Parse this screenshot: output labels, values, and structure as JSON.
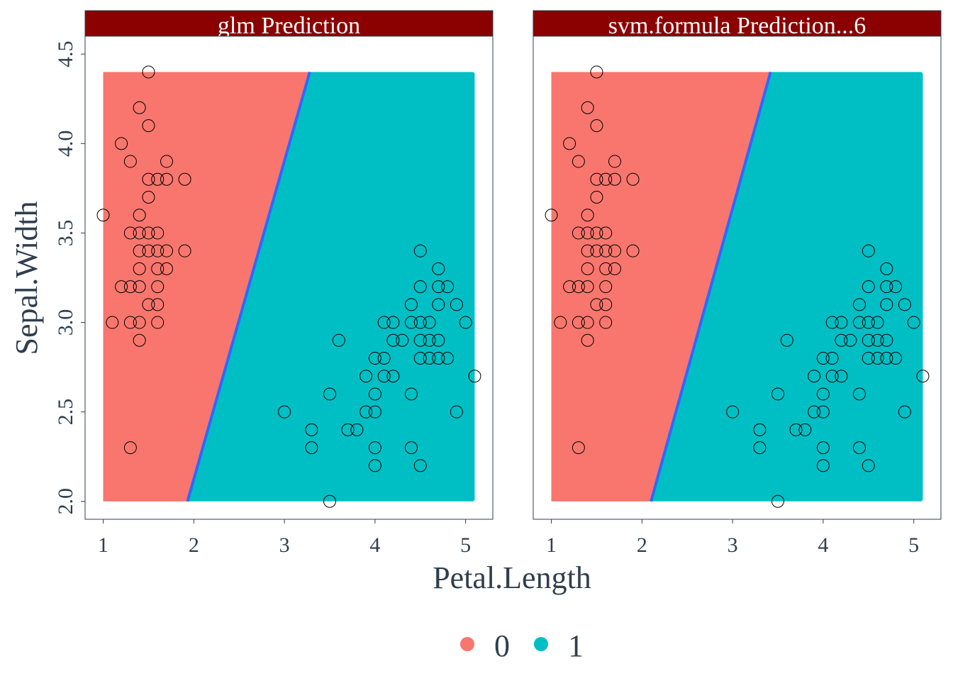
{
  "colors": {
    "class_0": "#F8766D",
    "class_1": "#00BFC4",
    "boundary": "#3366FF",
    "strip_bg": "#8B0000",
    "strip_text": "#FFFFFF",
    "panel_border": "#2F3E4F",
    "point_stroke": "#000000",
    "text": "#2F3E4F"
  },
  "chart_data": {
    "type": "scatter",
    "xlabel": "Petal.Length",
    "ylabel": "Sepal.Width",
    "xlim": [
      0.8,
      5.3
    ],
    "ylim": [
      1.9,
      4.6
    ],
    "x_ticks": [
      1,
      2,
      3,
      4,
      5
    ],
    "y_ticks": [
      2.0,
      2.5,
      3.0,
      3.5,
      4.0,
      4.5
    ],
    "x_tick_labels": [
      "1",
      "2",
      "3",
      "4",
      "5"
    ],
    "y_tick_labels": [
      "2.0",
      "2.5",
      "3.0",
      "3.5",
      "4.0",
      "4.5"
    ],
    "grid": false,
    "legend": {
      "placement": "bottom",
      "entries": [
        "0",
        "1"
      ]
    },
    "prediction_region": {
      "x_range": [
        1.0,
        5.1
      ],
      "y_range": [
        2.0,
        4.4
      ]
    },
    "panels": [
      {
        "title": "glm  Prediction",
        "boundary": [
          [
            1.93,
            2.0
          ],
          [
            3.28,
            4.4
          ]
        ]
      },
      {
        "title": "svm.formula  Prediction...6",
        "boundary": [
          [
            2.1,
            2.0
          ],
          [
            3.42,
            4.4
          ]
        ]
      }
    ],
    "points": [
      {
        "x": 1.5,
        "y": 4.4
      },
      {
        "x": 1.4,
        "y": 4.2
      },
      {
        "x": 1.5,
        "y": 4.1
      },
      {
        "x": 1.2,
        "y": 4.0
      },
      {
        "x": 1.3,
        "y": 3.9
      },
      {
        "x": 1.7,
        "y": 3.9
      },
      {
        "x": 1.5,
        "y": 3.8
      },
      {
        "x": 1.6,
        "y": 3.8
      },
      {
        "x": 1.7,
        "y": 3.8
      },
      {
        "x": 1.9,
        "y": 3.8
      },
      {
        "x": 1.5,
        "y": 3.7
      },
      {
        "x": 1.0,
        "y": 3.6
      },
      {
        "x": 1.4,
        "y": 3.6
      },
      {
        "x": 1.3,
        "y": 3.5
      },
      {
        "x": 1.4,
        "y": 3.5
      },
      {
        "x": 1.5,
        "y": 3.5
      },
      {
        "x": 1.6,
        "y": 3.5
      },
      {
        "x": 1.4,
        "y": 3.4
      },
      {
        "x": 1.5,
        "y": 3.4
      },
      {
        "x": 1.6,
        "y": 3.4
      },
      {
        "x": 1.7,
        "y": 3.4
      },
      {
        "x": 1.9,
        "y": 3.4
      },
      {
        "x": 1.6,
        "y": 3.3
      },
      {
        "x": 1.7,
        "y": 3.3
      },
      {
        "x": 1.4,
        "y": 3.3
      },
      {
        "x": 1.2,
        "y": 3.2
      },
      {
        "x": 1.3,
        "y": 3.2
      },
      {
        "x": 1.4,
        "y": 3.2
      },
      {
        "x": 1.6,
        "y": 3.2
      },
      {
        "x": 1.5,
        "y": 3.1
      },
      {
        "x": 1.6,
        "y": 3.1
      },
      {
        "x": 1.1,
        "y": 3.0
      },
      {
        "x": 1.3,
        "y": 3.0
      },
      {
        "x": 1.4,
        "y": 3.0
      },
      {
        "x": 1.6,
        "y": 3.0
      },
      {
        "x": 1.4,
        "y": 2.9
      },
      {
        "x": 1.3,
        "y": 2.3
      },
      {
        "x": 4.5,
        "y": 3.4
      },
      {
        "x": 4.7,
        "y": 3.3
      },
      {
        "x": 4.5,
        "y": 3.2
      },
      {
        "x": 4.7,
        "y": 3.2
      },
      {
        "x": 4.8,
        "y": 3.2
      },
      {
        "x": 4.4,
        "y": 3.1
      },
      {
        "x": 4.7,
        "y": 3.1
      },
      {
        "x": 4.9,
        "y": 3.1
      },
      {
        "x": 4.1,
        "y": 3.0
      },
      {
        "x": 4.2,
        "y": 3.0
      },
      {
        "x": 4.4,
        "y": 3.0
      },
      {
        "x": 4.5,
        "y": 3.0
      },
      {
        "x": 4.6,
        "y": 3.0
      },
      {
        "x": 5.0,
        "y": 3.0
      },
      {
        "x": 3.6,
        "y": 2.9
      },
      {
        "x": 4.2,
        "y": 2.9
      },
      {
        "x": 4.3,
        "y": 2.9
      },
      {
        "x": 4.5,
        "y": 2.9
      },
      {
        "x": 4.6,
        "y": 2.9
      },
      {
        "x": 4.7,
        "y": 2.9
      },
      {
        "x": 4.0,
        "y": 2.8
      },
      {
        "x": 4.1,
        "y": 2.8
      },
      {
        "x": 4.5,
        "y": 2.8
      },
      {
        "x": 4.6,
        "y": 2.8
      },
      {
        "x": 4.7,
        "y": 2.8
      },
      {
        "x": 4.8,
        "y": 2.8
      },
      {
        "x": 3.9,
        "y": 2.7
      },
      {
        "x": 4.1,
        "y": 2.7
      },
      {
        "x": 4.2,
        "y": 2.7
      },
      {
        "x": 5.1,
        "y": 2.7
      },
      {
        "x": 3.5,
        "y": 2.6
      },
      {
        "x": 4.0,
        "y": 2.6
      },
      {
        "x": 4.4,
        "y": 2.6
      },
      {
        "x": 3.0,
        "y": 2.5
      },
      {
        "x": 3.9,
        "y": 2.5
      },
      {
        "x": 4.0,
        "y": 2.5
      },
      {
        "x": 4.9,
        "y": 2.5
      },
      {
        "x": 3.3,
        "y": 2.4
      },
      {
        "x": 3.7,
        "y": 2.4
      },
      {
        "x": 3.8,
        "y": 2.4
      },
      {
        "x": 3.3,
        "y": 2.3
      },
      {
        "x": 4.0,
        "y": 2.3
      },
      {
        "x": 4.4,
        "y": 2.3
      },
      {
        "x": 4.0,
        "y": 2.2
      },
      {
        "x": 4.5,
        "y": 2.2
      },
      {
        "x": 3.5,
        "y": 2.0
      }
    ]
  }
}
